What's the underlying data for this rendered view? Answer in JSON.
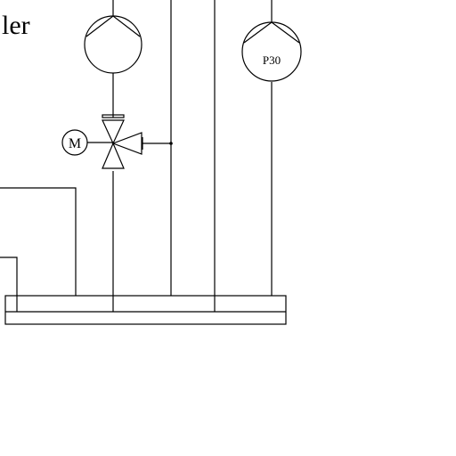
{
  "diagram": {
    "partial_heading": "ler",
    "pump_right_label": "P30",
    "motor_label": "M"
  }
}
